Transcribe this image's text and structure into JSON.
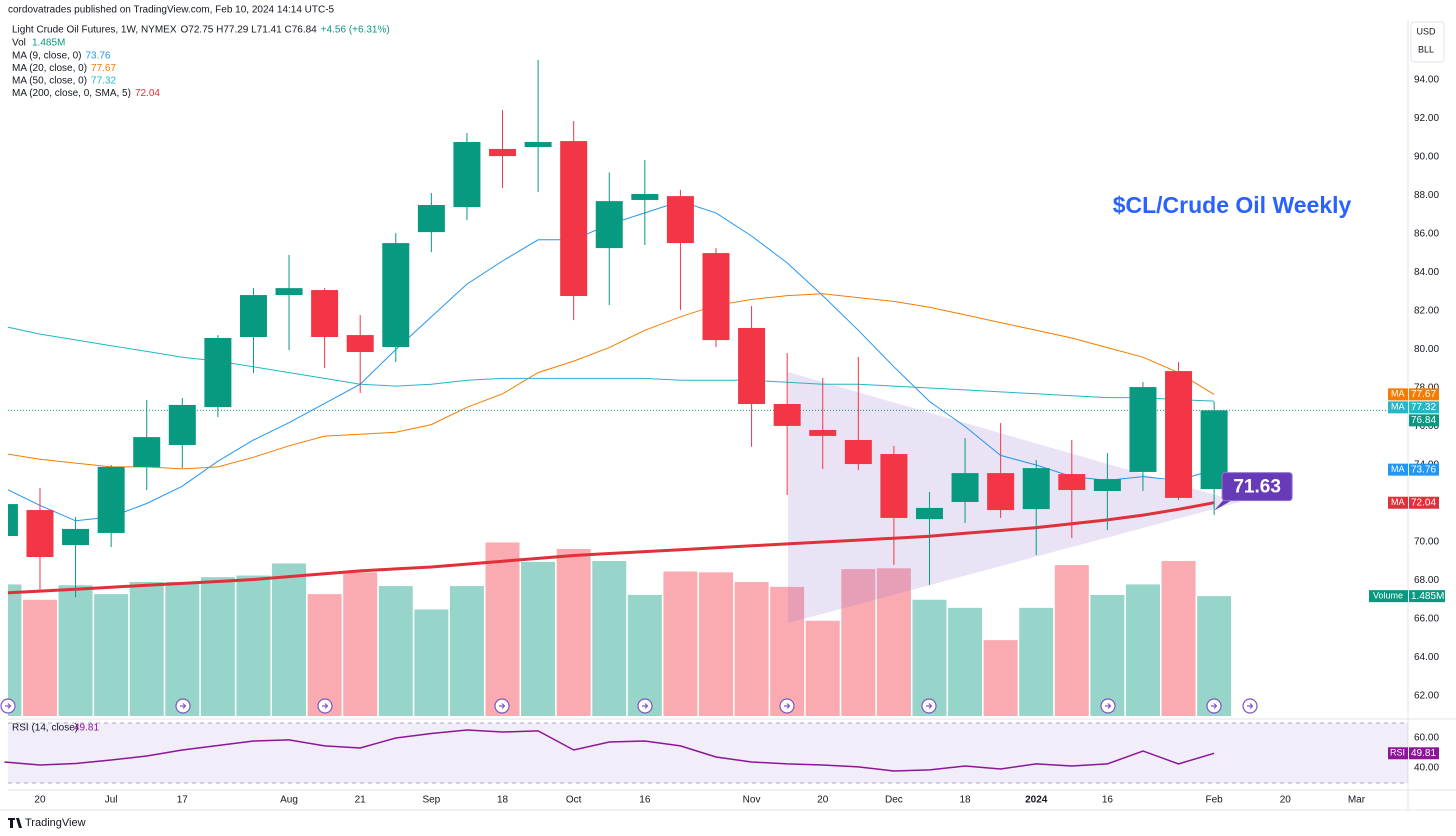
{
  "chart_data": {
    "type": "candlestick",
    "attribution": "cordovatrades published on TradingView.com, Feb 10, 2024 14:14 UTC-5",
    "symbol": "Light Crude Oil Futures, 1W, NYMEX",
    "ohlc_text": "O72.75 H77.29 L71.41 C76.84",
    "change_text": "+4.56 (+6.31%)",
    "title": "$CL/Crude Oil Weekly",
    "currency": [
      "USD",
      "BLL"
    ],
    "brand": "TradingView",
    "categories": [
      null,
      "20",
      null,
      "Jul",
      null,
      "17",
      null,
      null,
      "Aug",
      null,
      "21",
      null,
      "Sep",
      null,
      "18",
      null,
      "Oct",
      null,
      "16",
      null,
      null,
      "Nov",
      null,
      "20",
      null,
      "Dec",
      null,
      "18",
      null,
      "2024",
      null,
      "16",
      null,
      null,
      "Feb",
      null,
      "20",
      null,
      "Mar"
    ],
    "open": [
      70.31,
      71.66,
      69.84,
      70.47,
      73.9,
      75.04,
      77.01,
      80.65,
      82.83,
      83.09,
      80.75,
      80.13,
      86.1,
      87.4,
      90.42,
      90.52,
      90.83,
      85.27,
      87.77,
      87.97,
      85.01,
      81.12,
      77.17,
      75.82,
      75.3,
      74.57,
      71.19,
      72.08,
      73.58,
      71.71,
      73.53,
      72.65,
      73.64,
      78.88,
      72.75,
      null,
      null,
      null,
      null
    ],
    "high": [
      72.3,
      72.81,
      71.3,
      74.0,
      77.38,
      77.48,
      80.75,
      83.19,
      84.91,
      83.19,
      81.79,
      86.05,
      88.13,
      91.25,
      92.44,
      95.04,
      91.87,
      89.2,
      89.84,
      88.29,
      85.27,
      82.26,
      79.82,
      78.52,
      79.61,
      74.99,
      72.6,
      75.4,
      76.18,
      74.26,
      75.3,
      74.62,
      78.31,
      79.35,
      77.29,
      null,
      null,
      null,
      null
    ],
    "low": [
      70.0,
      67.51,
      67.14,
      69.74,
      72.7,
      73.84,
      76.49,
      78.78,
      79.97,
      79.04,
      77.74,
      79.35,
      85.06,
      86.73,
      88.39,
      88.18,
      81.53,
      82.31,
      85.43,
      82.05,
      80.13,
      74.94,
      72.44,
      73.79,
      73.74,
      68.81,
      67.77,
      70.99,
      71.25,
      69.32,
      70.21,
      70.62,
      72.65,
      72.18,
      71.41,
      null,
      null,
      null,
      null
    ],
    "close": [
      71.97,
      69.22,
      70.68,
      73.9,
      75.45,
      77.12,
      80.6,
      82.83,
      83.19,
      80.65,
      79.87,
      85.53,
      87.51,
      90.78,
      90.05,
      90.78,
      82.78,
      87.71,
      88.08,
      85.53,
      80.49,
      77.17,
      76.03,
      75.51,
      74.05,
      71.25,
      71.77,
      73.58,
      71.66,
      73.84,
      72.7,
      73.27,
      78.05,
      72.29,
      76.84,
      null,
      null,
      null,
      null
    ],
    "price_label": "76.84",
    "up_color": "#089981",
    "down_color": "#f23645",
    "ylim": [
      60.96,
      97.12
    ],
    "yticks": [
      {
        "value": 62,
        "label": "62.00"
      },
      {
        "value": 64,
        "label": "64.00"
      },
      {
        "value": 66,
        "label": "66.00"
      },
      {
        "value": 68,
        "label": "68.00"
      },
      {
        "value": 70,
        "label": "70.00"
      },
      {
        "value": 72,
        "label": "72.00"
      },
      {
        "value": 74,
        "label": "74.00"
      },
      {
        "value": 76,
        "label": "76.00"
      },
      {
        "value": 78,
        "label": "78.00"
      },
      {
        "value": 80,
        "label": "80.00"
      },
      {
        "value": 82,
        "label": "82.00"
      },
      {
        "value": 84,
        "label": "84.00"
      },
      {
        "value": 86,
        "label": "86.00"
      },
      {
        "value": 88,
        "label": "88.00"
      },
      {
        "value": 90,
        "label": "90.00"
      },
      {
        "value": 92,
        "label": "92.00"
      },
      {
        "value": 94,
        "label": "94.00"
      }
    ],
    "grid": false,
    "volume": {
      "name": "Vol",
      "tag": "Volume",
      "last_label": "1.485M",
      "ylim": [
        0,
        4.2
      ],
      "values": [
        1.63,
        1.44,
        1.62,
        1.51,
        1.66,
        1.66,
        1.72,
        1.74,
        1.89,
        1.51,
        1.78,
        1.61,
        1.32,
        1.61,
        2.15,
        1.91,
        2.07,
        1.92,
        1.5,
        1.79,
        1.78,
        1.66,
        1.6,
        1.18,
        1.82,
        1.83,
        1.44,
        1.34,
        0.94,
        1.34,
        1.87,
        1.5,
        1.63,
        1.92,
        1.485,
        null,
        null,
        null,
        null
      ]
    },
    "series": [
      {
        "name": "MA (9, close, 0)",
        "tag": "MA",
        "color": "#2196f3",
        "width": 1,
        "last_label": "73.76",
        "values": [
          72.8,
          71.9,
          71.1,
          71.3,
          72.0,
          72.9,
          74.2,
          75.3,
          76.2,
          77.2,
          78.2,
          80.0,
          81.7,
          83.4,
          84.6,
          85.7,
          85.7,
          86.5,
          87.1,
          87.7,
          87.1,
          85.9,
          84.5,
          82.8,
          81.0,
          79.1,
          77.3,
          76.0,
          74.5,
          74.0,
          73.4,
          73.2,
          73.4,
          73.2,
          73.76,
          null,
          null,
          null,
          null
        ]
      },
      {
        "name": "MA (20, close, 0)",
        "tag": "MA",
        "color": "#f57c00",
        "width": 1,
        "last_label": "77.67",
        "values": [
          74.6,
          74.3,
          74.1,
          73.9,
          73.9,
          73.8,
          73.9,
          74.4,
          75.0,
          75.5,
          75.6,
          75.7,
          76.1,
          77.0,
          77.7,
          78.8,
          79.4,
          80.1,
          81.0,
          81.7,
          82.3,
          82.6,
          82.8,
          82.9,
          82.7,
          82.5,
          82.2,
          81.8,
          81.4,
          81.0,
          80.6,
          80.1,
          79.6,
          78.8,
          77.67,
          null,
          null,
          null,
          null
        ]
      },
      {
        "name": "MA (50, close, 0)",
        "tag": "MA",
        "color": "#26b5c9",
        "width": 1,
        "last_label": "77.32",
        "values": [
          81.2,
          80.8,
          80.5,
          80.2,
          79.9,
          79.6,
          79.4,
          79.1,
          78.8,
          78.5,
          78.2,
          78.1,
          78.2,
          78.4,
          78.5,
          78.5,
          78.5,
          78.5,
          78.5,
          78.4,
          78.4,
          78.4,
          78.3,
          78.2,
          78.2,
          78.1,
          78.0,
          77.9,
          77.8,
          77.7,
          77.6,
          77.5,
          77.5,
          77.4,
          77.32,
          null,
          null,
          null,
          null
        ]
      },
      {
        "name": "MA (200, close, 0, SMA, 5)",
        "tag": "MA",
        "color": "#e0303a",
        "width": 3,
        "last_label": "72.04",
        "values": [
          67.35,
          67.45,
          67.55,
          67.65,
          67.75,
          67.85,
          67.95,
          68.05,
          68.2,
          68.35,
          68.5,
          68.6,
          68.7,
          68.85,
          69.0,
          69.15,
          69.3,
          69.4,
          69.5,
          69.6,
          69.7,
          69.8,
          69.9,
          70.0,
          70.1,
          70.2,
          70.3,
          70.45,
          70.6,
          70.75,
          70.95,
          71.15,
          71.4,
          71.7,
          72.04,
          null,
          null,
          null,
          null
        ]
      }
    ],
    "annotation": {
      "label": "71.63",
      "value": 71.63
    },
    "rsi": {
      "name": "RSI (14, close)",
      "tag": "RSI",
      "color": "#8e1599",
      "last_label": "49.81",
      "ylim": [
        25.33,
        72
      ],
      "band": [
        30,
        70
      ],
      "yticks": [
        {
          "value": 60,
          "label": "60.00"
        },
        {
          "value": 40,
          "label": "40.00"
        }
      ],
      "values": [
        44,
        42,
        43,
        45.3,
        48,
        52,
        55,
        58,
        58.7,
        54.7,
        53.3,
        60,
        63,
        65.3,
        64,
        64.7,
        52,
        57.3,
        58,
        54.7,
        47.3,
        44,
        42.7,
        42,
        40.7,
        38,
        38.7,
        41.3,
        39.3,
        42.7,
        41.3,
        42.7,
        51.3,
        42.7,
        49.81,
        null,
        null,
        null,
        null
      ]
    }
  }
}
